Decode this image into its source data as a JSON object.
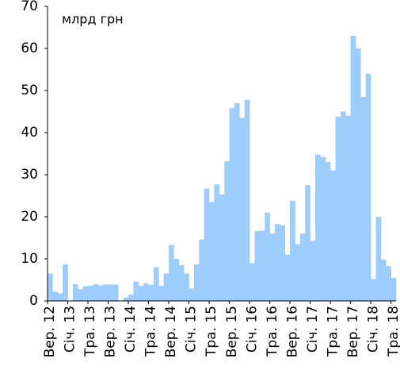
{
  "chart_data": {
    "type": "bar",
    "annotation": "млрд грн",
    "categories": [
      "Вер. 12",
      null,
      null,
      null,
      "Січ. 13",
      null,
      null,
      null,
      "Тра. 13",
      null,
      null,
      null,
      "Вер. 13",
      null,
      null,
      null,
      "Січ. 14",
      null,
      null,
      null,
      "Тра. 14",
      null,
      null,
      null,
      "Вер. 14",
      null,
      null,
      null,
      "Січ. 15",
      null,
      null,
      null,
      "Тра. 15",
      null,
      null,
      null,
      "Вер. 15",
      null,
      null,
      null,
      "Січ. 16",
      null,
      null,
      null,
      "Тра. 16",
      null,
      null,
      null,
      "Вер. 16",
      null,
      null,
      null,
      "Січ. 17",
      null,
      null,
      null,
      "Тра. 17",
      null,
      null,
      null,
      "Вер. 17",
      null,
      null,
      null,
      "Січ. 18",
      null,
      null,
      null,
      "Тра. 18"
    ],
    "values": [
      6.5,
      2.2,
      1.8,
      8.7,
      0,
      4,
      2.8,
      3.5,
      3.6,
      4,
      3.7,
      3.9,
      3.9,
      3.9,
      0,
      0.8,
      1.5,
      4.6,
      3.6,
      4.2,
      3.8,
      8,
      3.6,
      6.5,
      13.3,
      10,
      8.5,
      6.5,
      3,
      8.7,
      14.6,
      26.7,
      23.5,
      27.7,
      25.3,
      33.2,
      45.8,
      47,
      43.5,
      47.8,
      9,
      16.6,
      16.7,
      21,
      16,
      18.3,
      18,
      11,
      23.8,
      13.5,
      16,
      27.5,
      14.3,
      34.8,
      34.2,
      33,
      31,
      43.8,
      45,
      44,
      63,
      60,
      48.5,
      54,
      5.2,
      20,
      9.8,
      8.3,
      5.5
    ],
    "color": "#9fcdfb",
    "ylim": [
      0,
      70
    ],
    "yticks": [
      0,
      10,
      20,
      30,
      40,
      50,
      60,
      70
    ],
    "grid": false
  }
}
